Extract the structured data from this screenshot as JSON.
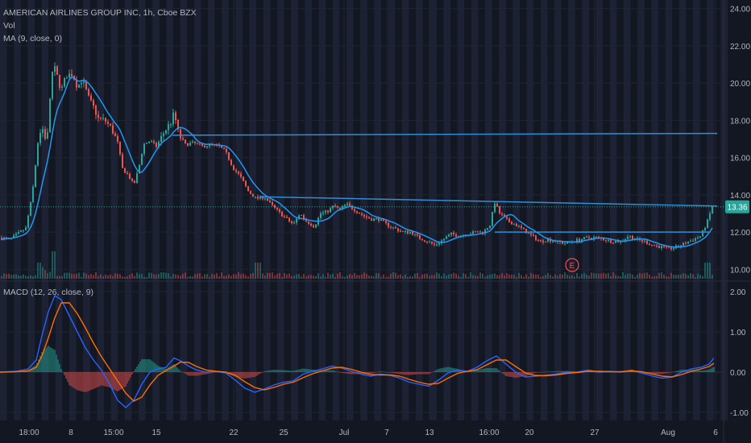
{
  "header": {
    "title": "AMERICAN AIRLINES GROUP INC, 1h, Cboe BZX",
    "vol_label": "Vol",
    "ma_label": "MA (9, close, 0)",
    "macd_label": "MACD (12, 26, close, 9)"
  },
  "price_tag": "13.36",
  "earnings_marker": "E",
  "colors": {
    "background": "#131722",
    "band": "#1c2233",
    "up": "#26a69a",
    "down": "#ef5350",
    "ma": "#2196f3",
    "trendline": "#2e8fd6",
    "macd_line": "#2962ff",
    "signal_line": "#ff6d00",
    "text": "#b2b5be"
  },
  "chart_data": [
    {
      "type": "candlestick",
      "title": "AMERICAN AIRLINES GROUP INC, 1h, Cboe BZX",
      "y_ticks": [
        "24.00",
        "22.00",
        "20.00",
        "18.00",
        "16.00",
        "14.00",
        "12.00",
        "10.00"
      ],
      "ylim": [
        9.5,
        24.2
      ],
      "x_ticks": [
        "18:00",
        "8",
        "15:00",
        "15",
        "22",
        "25",
        "Jul",
        "7",
        "13",
        "16:00",
        "20",
        "27",
        "Aug",
        "6"
      ],
      "last_price": 13.36,
      "close_anchors": [
        [
          0,
          11.7
        ],
        [
          12,
          11.6
        ],
        [
          22,
          11.9
        ],
        [
          32,
          12.2
        ],
        [
          40,
          14.0
        ],
        [
          48,
          17.2
        ],
        [
          54,
          17.6
        ],
        [
          58,
          16.6
        ],
        [
          62,
          19.2
        ],
        [
          66,
          21.0
        ],
        [
          70,
          20.5
        ],
        [
          76,
          19.6
        ],
        [
          82,
          20.4
        ],
        [
          90,
          20.5
        ],
        [
          96,
          19.8
        ],
        [
          102,
          20.2
        ],
        [
          110,
          19.2
        ],
        [
          116,
          18.7
        ],
        [
          122,
          18.1
        ],
        [
          130,
          18.0
        ],
        [
          138,
          17.6
        ],
        [
          146,
          16.8
        ],
        [
          152,
          15.4
        ],
        [
          160,
          15.0
        ],
        [
          166,
          14.5
        ],
        [
          172,
          15.4
        ],
        [
          178,
          16.7
        ],
        [
          186,
          16.9
        ],
        [
          194,
          16.6
        ],
        [
          204,
          17.4
        ],
        [
          212,
          17.9
        ],
        [
          216,
          18.4
        ],
        [
          222,
          17.2
        ],
        [
          230,
          16.7
        ],
        [
          240,
          16.8
        ],
        [
          250,
          16.6
        ],
        [
          262,
          16.7
        ],
        [
          272,
          16.6
        ],
        [
          280,
          16.3
        ],
        [
          290,
          15.4
        ],
        [
          298,
          15.0
        ],
        [
          308,
          14.2
        ],
        [
          318,
          13.8
        ],
        [
          328,
          13.9
        ],
        [
          338,
          13.4
        ],
        [
          348,
          13.0
        ],
        [
          356,
          12.7
        ],
        [
          364,
          12.4
        ],
        [
          372,
          13.0
        ],
        [
          380,
          12.6
        ],
        [
          390,
          12.3
        ],
        [
          398,
          13.0
        ],
        [
          406,
          13.1
        ],
        [
          414,
          13.4
        ],
        [
          422,
          13.2
        ],
        [
          430,
          13.5
        ],
        [
          440,
          13.2
        ],
        [
          450,
          12.9
        ],
        [
          460,
          12.7
        ],
        [
          470,
          12.7
        ],
        [
          480,
          12.4
        ],
        [
          490,
          12.2
        ],
        [
          500,
          12.0
        ],
        [
          510,
          12.0
        ],
        [
          520,
          11.7
        ],
        [
          530,
          11.5
        ],
        [
          540,
          11.3
        ],
        [
          550,
          11.6
        ],
        [
          560,
          11.9
        ],
        [
          570,
          11.8
        ],
        [
          580,
          11.9
        ],
        [
          590,
          12.0
        ],
        [
          600,
          12.0
        ],
        [
          608,
          12.4
        ],
        [
          614,
          13.6
        ],
        [
          620,
          13.0
        ],
        [
          630,
          12.6
        ],
        [
          640,
          12.4
        ],
        [
          650,
          12.1
        ],
        [
          660,
          11.8
        ],
        [
          670,
          11.5
        ],
        [
          680,
          11.6
        ],
        [
          690,
          11.5
        ],
        [
          700,
          11.4
        ],
        [
          710,
          11.5
        ],
        [
          720,
          11.6
        ],
        [
          730,
          11.7
        ],
        [
          740,
          11.7
        ],
        [
          750,
          11.6
        ],
        [
          760,
          11.5
        ],
        [
          770,
          11.5
        ],
        [
          780,
          11.8
        ],
        [
          790,
          11.6
        ],
        [
          800,
          11.5
        ],
        [
          810,
          11.3
        ],
        [
          820,
          11.2
        ],
        [
          830,
          11.1
        ],
        [
          840,
          11.2
        ],
        [
          850,
          11.4
        ],
        [
          860,
          11.6
        ],
        [
          870,
          11.8
        ],
        [
          878,
          12.6
        ],
        [
          884,
          13.36
        ]
      ],
      "volume_spikes": [
        [
          66,
          "high"
        ],
        [
          48,
          "mid"
        ],
        [
          320,
          "mid"
        ],
        [
          878,
          "mid"
        ]
      ],
      "trendlines": [
        {
          "from": [
            214,
            17.2
          ],
          "to": [
            890,
            17.3
          ]
        },
        {
          "from": [
            322,
            13.9
          ],
          "to": [
            890,
            13.4
          ]
        },
        {
          "from": [
            614,
            12.0
          ],
          "to": [
            880,
            12.0
          ]
        }
      ],
      "ma_period": 9,
      "ma_label": "MA (9, close, 0)"
    },
    {
      "type": "macd",
      "title": "MACD (12, 26, close, 9)",
      "y_ticks": [
        "2.00",
        "1.00",
        "0.00",
        "-1.00"
      ],
      "ylim": [
        -1.2,
        2.2
      ],
      "macd_line": [
        [
          0,
          0.0
        ],
        [
          20,
          0.02
        ],
        [
          35,
          0.08
        ],
        [
          45,
          0.3
        ],
        [
          52,
          0.9
        ],
        [
          60,
          1.5
        ],
        [
          68,
          1.9
        ],
        [
          76,
          1.8
        ],
        [
          86,
          1.4
        ],
        [
          96,
          1.0
        ],
        [
          106,
          0.6
        ],
        [
          116,
          0.3
        ],
        [
          126,
          0.05
        ],
        [
          136,
          -0.3
        ],
        [
          146,
          -0.7
        ],
        [
          156,
          -0.88
        ],
        [
          166,
          -0.7
        ],
        [
          176,
          -0.3
        ],
        [
          186,
          0.0
        ],
        [
          196,
          0.08
        ],
        [
          206,
          0.12
        ],
        [
          216,
          0.35
        ],
        [
          224,
          0.28
        ],
        [
          234,
          0.15
        ],
        [
          244,
          0.05
        ],
        [
          256,
          0.0
        ],
        [
          268,
          0.02
        ],
        [
          280,
          -0.02
        ],
        [
          292,
          -0.2
        ],
        [
          304,
          -0.4
        ],
        [
          316,
          -0.5
        ],
        [
          328,
          -0.42
        ],
        [
          340,
          -0.32
        ],
        [
          352,
          -0.25
        ],
        [
          364,
          -0.22
        ],
        [
          376,
          -0.05
        ],
        [
          388,
          0.02
        ],
        [
          400,
          0.08
        ],
        [
          412,
          0.15
        ],
        [
          424,
          0.1
        ],
        [
          436,
          0.02
        ],
        [
          448,
          -0.05
        ],
        [
          460,
          -0.1
        ],
        [
          472,
          -0.05
        ],
        [
          484,
          -0.08
        ],
        [
          496,
          -0.15
        ],
        [
          508,
          -0.25
        ],
        [
          520,
          -0.3
        ],
        [
          532,
          -0.35
        ],
        [
          544,
          -0.2
        ],
        [
          556,
          -0.02
        ],
        [
          568,
          0.05
        ],
        [
          580,
          0.02
        ],
        [
          592,
          0.12
        ],
        [
          604,
          0.28
        ],
        [
          616,
          0.4
        ],
        [
          628,
          0.2
        ],
        [
          640,
          0.0
        ],
        [
          652,
          -0.12
        ],
        [
          664,
          -0.1
        ],
        [
          676,
          -0.08
        ],
        [
          690,
          -0.05
        ],
        [
          704,
          0.0
        ],
        [
          716,
          0.0
        ],
        [
          730,
          0.05
        ],
        [
          744,
          0.0
        ],
        [
          756,
          0.02
        ],
        [
          770,
          0.0
        ],
        [
          784,
          0.05
        ],
        [
          796,
          -0.02
        ],
        [
          810,
          -0.1
        ],
        [
          822,
          -0.15
        ],
        [
          834,
          -0.12
        ],
        [
          846,
          0.0
        ],
        [
          858,
          0.08
        ],
        [
          870,
          0.12
        ],
        [
          880,
          0.2
        ],
        [
          886,
          0.35
        ]
      ],
      "signal_line": [
        [
          0,
          0.0
        ],
        [
          20,
          0.01
        ],
        [
          35,
          0.03
        ],
        [
          45,
          0.12
        ],
        [
          52,
          0.4
        ],
        [
          60,
          0.85
        ],
        [
          68,
          1.35
        ],
        [
          76,
          1.72
        ],
        [
          86,
          1.72
        ],
        [
          96,
          1.45
        ],
        [
          106,
          1.1
        ],
        [
          116,
          0.72
        ],
        [
          126,
          0.38
        ],
        [
          136,
          0.08
        ],
        [
          146,
          -0.22
        ],
        [
          156,
          -0.52
        ],
        [
          166,
          -0.72
        ],
        [
          176,
          -0.62
        ],
        [
          186,
          -0.32
        ],
        [
          196,
          -0.08
        ],
        [
          206,
          0.04
        ],
        [
          216,
          0.15
        ],
        [
          224,
          0.25
        ],
        [
          234,
          0.24
        ],
        [
          244,
          0.14
        ],
        [
          256,
          0.05
        ],
        [
          268,
          0.02
        ],
        [
          280,
          0.0
        ],
        [
          292,
          -0.08
        ],
        [
          304,
          -0.24
        ],
        [
          316,
          -0.38
        ],
        [
          328,
          -0.44
        ],
        [
          340,
          -0.38
        ],
        [
          352,
          -0.3
        ],
        [
          364,
          -0.25
        ],
        [
          376,
          -0.14
        ],
        [
          388,
          -0.04
        ],
        [
          400,
          0.03
        ],
        [
          412,
          0.1
        ],
        [
          424,
          0.12
        ],
        [
          436,
          0.07
        ],
        [
          448,
          0.0
        ],
        [
          460,
          -0.06
        ],
        [
          472,
          -0.07
        ],
        [
          484,
          -0.07
        ],
        [
          496,
          -0.1
        ],
        [
          508,
          -0.18
        ],
        [
          520,
          -0.25
        ],
        [
          532,
          -0.3
        ],
        [
          544,
          -0.28
        ],
        [
          556,
          -0.15
        ],
        [
          568,
          -0.03
        ],
        [
          580,
          0.02
        ],
        [
          592,
          0.06
        ],
        [
          604,
          0.18
        ],
        [
          616,
          0.3
        ],
        [
          628,
          0.3
        ],
        [
          640,
          0.14
        ],
        [
          652,
          -0.02
        ],
        [
          664,
          -0.08
        ],
        [
          676,
          -0.09
        ],
        [
          690,
          -0.07
        ],
        [
          704,
          -0.03
        ],
        [
          716,
          -0.01
        ],
        [
          730,
          0.02
        ],
        [
          744,
          0.02
        ],
        [
          756,
          0.01
        ],
        [
          770,
          0.01
        ],
        [
          784,
          0.03
        ],
        [
          796,
          0.01
        ],
        [
          810,
          -0.05
        ],
        [
          822,
          -0.1
        ],
        [
          834,
          -0.12
        ],
        [
          846,
          -0.06
        ],
        [
          858,
          0.02
        ],
        [
          870,
          0.08
        ],
        [
          880,
          0.14
        ],
        [
          886,
          0.22
        ]
      ]
    }
  ]
}
